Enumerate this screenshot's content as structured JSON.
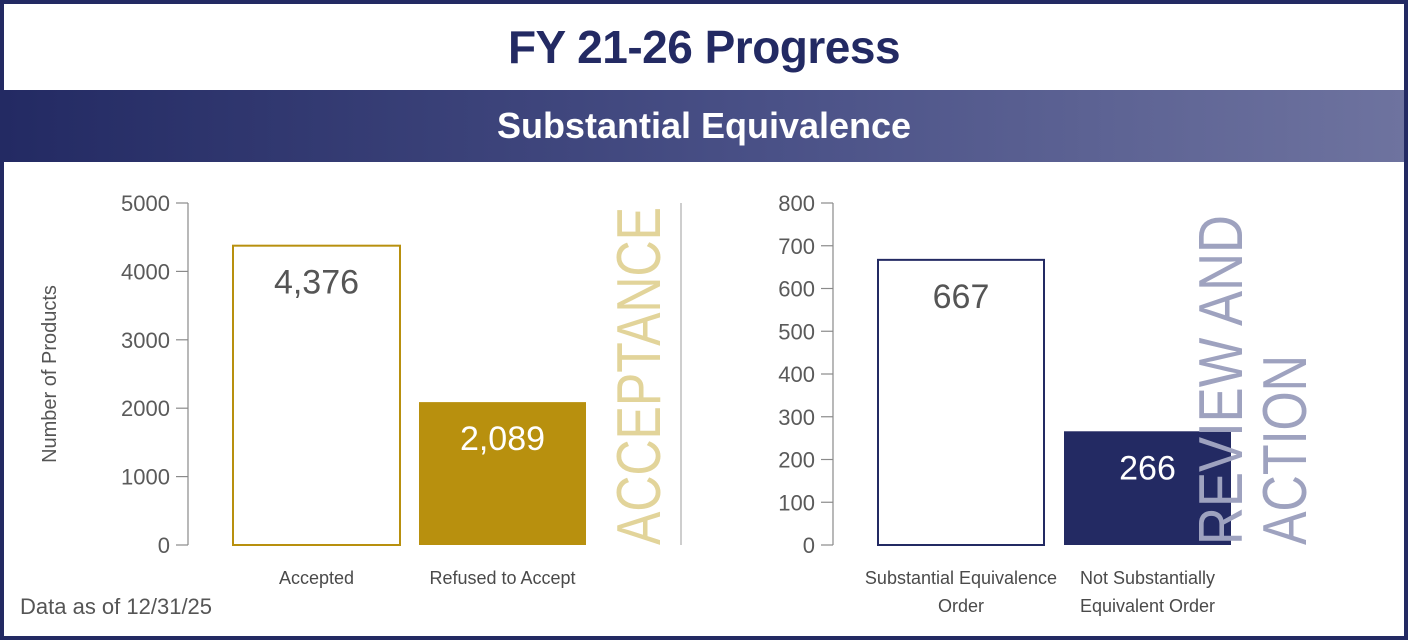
{
  "header": {
    "title": "FY 21-26 Progress",
    "subtitle": "Substantial Equivalence"
  },
  "footnote": "Data as of 12/31/25",
  "colors": {
    "navy": "#232a63",
    "gold": "#b8900e",
    "gold_light": "#e2d49a",
    "lavender": "#9ea2bf",
    "axis": "#8a8a8a",
    "text_gray": "#5a5a5a"
  },
  "chart_data": [
    {
      "type": "bar",
      "side_title": "ACCEPTANCE",
      "ylabel": "Number of Products",
      "ylim": [
        0,
        5000
      ],
      "yticks": [
        0,
        1000,
        2000,
        3000,
        4000,
        5000
      ],
      "categories": [
        "Accepted",
        "Refused to Accept"
      ],
      "values": [
        4376,
        2089
      ],
      "value_labels": [
        "4,376",
        "2,089"
      ],
      "bar_styles": [
        "outline-gold",
        "filled-gold"
      ]
    },
    {
      "type": "bar",
      "side_title": "REVIEW AND ACTION",
      "side_title_lines": [
        "REVIEW AND",
        "ACTION"
      ],
      "ylabel": "",
      "ylim": [
        0,
        800
      ],
      "yticks": [
        0,
        100,
        200,
        300,
        400,
        500,
        600,
        700,
        800
      ],
      "categories": [
        [
          "Substantial Equivalence",
          "Order"
        ],
        [
          "Not Substantially",
          "Equivalent Order"
        ]
      ],
      "values": [
        667,
        266
      ],
      "value_labels": [
        "667",
        "266"
      ],
      "bar_styles": [
        "outline-navy",
        "filled-navy"
      ]
    }
  ]
}
